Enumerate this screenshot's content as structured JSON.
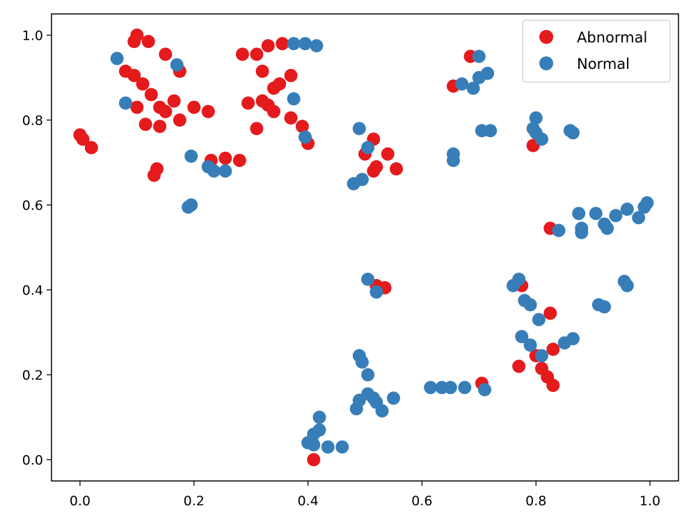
{
  "chart_data": {
    "type": "scatter",
    "title": "",
    "xlabel": "",
    "ylabel": "",
    "xlim": [
      -0.05,
      1.05
    ],
    "ylim": [
      -0.05,
      1.05
    ],
    "xticks": [
      "0.0",
      "0.2",
      "0.4",
      "0.6",
      "0.8",
      "1.0"
    ],
    "yticks": [
      "0.0",
      "0.2",
      "0.4",
      "0.6",
      "0.8",
      "1.0"
    ],
    "grid": false,
    "legend_position": "top-right",
    "series": [
      {
        "name": "Abnormal",
        "color": "#e41a1c",
        "points": [
          [
            0.0,
            0.765
          ],
          [
            0.005,
            0.755
          ],
          [
            0.02,
            0.735
          ],
          [
            0.08,
            0.915
          ],
          [
            0.095,
            0.985
          ],
          [
            0.1,
            1.0
          ],
          [
            0.12,
            0.985
          ],
          [
            0.095,
            0.905
          ],
          [
            0.11,
            0.885
          ],
          [
            0.1,
            0.83
          ],
          [
            0.125,
            0.86
          ],
          [
            0.115,
            0.79
          ],
          [
            0.14,
            0.83
          ],
          [
            0.15,
            0.82
          ],
          [
            0.165,
            0.845
          ],
          [
            0.14,
            0.785
          ],
          [
            0.175,
            0.8
          ],
          [
            0.15,
            0.955
          ],
          [
            0.175,
            0.915
          ],
          [
            0.135,
            0.685
          ],
          [
            0.13,
            0.67
          ],
          [
            0.2,
            0.83
          ],
          [
            0.225,
            0.82
          ],
          [
            0.23,
            0.705
          ],
          [
            0.255,
            0.71
          ],
          [
            0.28,
            0.705
          ],
          [
            0.285,
            0.955
          ],
          [
            0.31,
            0.955
          ],
          [
            0.33,
            0.975
          ],
          [
            0.355,
            0.98
          ],
          [
            0.32,
            0.915
          ],
          [
            0.35,
            0.885
          ],
          [
            0.34,
            0.875
          ],
          [
            0.37,
            0.905
          ],
          [
            0.295,
            0.84
          ],
          [
            0.32,
            0.845
          ],
          [
            0.33,
            0.835
          ],
          [
            0.34,
            0.82
          ],
          [
            0.31,
            0.78
          ],
          [
            0.37,
            0.805
          ],
          [
            0.39,
            0.785
          ],
          [
            0.4,
            0.745
          ],
          [
            0.5,
            0.72
          ],
          [
            0.515,
            0.755
          ],
          [
            0.515,
            0.68
          ],
          [
            0.52,
            0.69
          ],
          [
            0.54,
            0.72
          ],
          [
            0.555,
            0.685
          ],
          [
            0.52,
            0.41
          ],
          [
            0.535,
            0.405
          ],
          [
            0.41,
            0.0
          ],
          [
            0.655,
            0.88
          ],
          [
            0.685,
            0.95
          ],
          [
            0.795,
            0.74
          ],
          [
            0.825,
            0.545
          ],
          [
            0.775,
            0.41
          ],
          [
            0.825,
            0.345
          ],
          [
            0.83,
            0.26
          ],
          [
            0.8,
            0.245
          ],
          [
            0.77,
            0.22
          ],
          [
            0.81,
            0.215
          ],
          [
            0.82,
            0.195
          ],
          [
            0.83,
            0.175
          ],
          [
            0.705,
            0.18
          ]
        ]
      },
      {
        "name": "Normal",
        "color": "#377eb8",
        "points": [
          [
            0.065,
            0.945
          ],
          [
            0.08,
            0.84
          ],
          [
            0.17,
            0.93
          ],
          [
            0.195,
            0.715
          ],
          [
            0.19,
            0.595
          ],
          [
            0.195,
            0.6
          ],
          [
            0.225,
            0.69
          ],
          [
            0.235,
            0.68
          ],
          [
            0.255,
            0.68
          ],
          [
            0.375,
            0.98
          ],
          [
            0.395,
            0.98
          ],
          [
            0.415,
            0.975
          ],
          [
            0.375,
            0.85
          ],
          [
            0.395,
            0.76
          ],
          [
            0.49,
            0.78
          ],
          [
            0.505,
            0.735
          ],
          [
            0.48,
            0.65
          ],
          [
            0.495,
            0.66
          ],
          [
            0.505,
            0.425
          ],
          [
            0.52,
            0.395
          ],
          [
            0.49,
            0.245
          ],
          [
            0.495,
            0.23
          ],
          [
            0.505,
            0.2
          ],
          [
            0.49,
            0.14
          ],
          [
            0.485,
            0.12
          ],
          [
            0.505,
            0.155
          ],
          [
            0.515,
            0.145
          ],
          [
            0.52,
            0.135
          ],
          [
            0.53,
            0.115
          ],
          [
            0.55,
            0.145
          ],
          [
            0.42,
            0.1
          ],
          [
            0.42,
            0.07
          ],
          [
            0.41,
            0.06
          ],
          [
            0.4,
            0.04
          ],
          [
            0.41,
            0.035
          ],
          [
            0.435,
            0.03
          ],
          [
            0.46,
            0.03
          ],
          [
            0.615,
            0.17
          ],
          [
            0.635,
            0.17
          ],
          [
            0.65,
            0.17
          ],
          [
            0.675,
            0.17
          ],
          [
            0.71,
            0.165
          ],
          [
            0.655,
            0.72
          ],
          [
            0.655,
            0.705
          ],
          [
            0.67,
            0.885
          ],
          [
            0.69,
            0.875
          ],
          [
            0.7,
            0.95
          ],
          [
            0.7,
            0.9
          ],
          [
            0.715,
            0.91
          ],
          [
            0.705,
            0.775
          ],
          [
            0.72,
            0.775
          ],
          [
            0.8,
            0.805
          ],
          [
            0.795,
            0.78
          ],
          [
            0.8,
            0.77
          ],
          [
            0.81,
            0.755
          ],
          [
            0.86,
            0.775
          ],
          [
            0.865,
            0.77
          ],
          [
            0.84,
            0.54
          ],
          [
            0.875,
            0.58
          ],
          [
            0.88,
            0.545
          ],
          [
            0.88,
            0.535
          ],
          [
            0.905,
            0.58
          ],
          [
            0.92,
            0.555
          ],
          [
            0.925,
            0.545
          ],
          [
            0.94,
            0.575
          ],
          [
            0.96,
            0.59
          ],
          [
            0.98,
            0.57
          ],
          [
            0.99,
            0.595
          ],
          [
            0.995,
            0.605
          ],
          [
            0.76,
            0.41
          ],
          [
            0.77,
            0.425
          ],
          [
            0.78,
            0.375
          ],
          [
            0.79,
            0.365
          ],
          [
            0.805,
            0.33
          ],
          [
            0.775,
            0.29
          ],
          [
            0.79,
            0.27
          ],
          [
            0.81,
            0.245
          ],
          [
            0.85,
            0.275
          ],
          [
            0.865,
            0.285
          ],
          [
            0.91,
            0.365
          ],
          [
            0.92,
            0.36
          ],
          [
            0.955,
            0.42
          ],
          [
            0.96,
            0.41
          ]
        ]
      }
    ]
  }
}
